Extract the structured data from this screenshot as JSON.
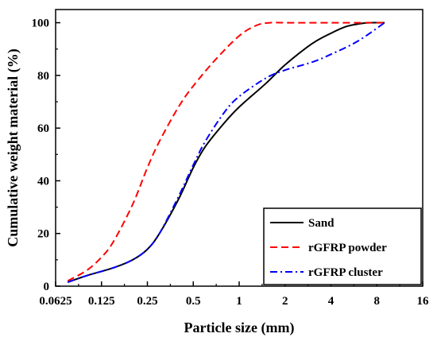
{
  "chart_data": {
    "type": "line",
    "title": "",
    "xlabel": "Particle size (mm)",
    "ylabel": "Cumulative weight material (%)",
    "x_scale": "log2",
    "xlim": [
      0.0625,
      16
    ],
    "ylim": [
      0,
      105
    ],
    "x_ticks": [
      0.0625,
      0.125,
      0.25,
      0.5,
      1,
      2,
      4,
      8,
      16
    ],
    "x_tick_labels": [
      "0.0625",
      "0.125",
      "0.25",
      "0.5",
      "1",
      "2",
      "4",
      "8",
      "16"
    ],
    "y_ticks": [
      0,
      20,
      40,
      60,
      80,
      100
    ],
    "y_tick_labels": [
      "0",
      "20",
      "40",
      "60",
      "80",
      "100"
    ],
    "grid": false,
    "legend_position": "bottom-right",
    "series": [
      {
        "name": "Sand",
        "color": "#000000",
        "dash": "solid",
        "points": [
          [
            0.075,
            1.5
          ],
          [
            0.1,
            4
          ],
          [
            0.15,
            7
          ],
          [
            0.2,
            10
          ],
          [
            0.25,
            14
          ],
          [
            0.3,
            20
          ],
          [
            0.4,
            33
          ],
          [
            0.5,
            45
          ],
          [
            0.6,
            53
          ],
          [
            0.8,
            62
          ],
          [
            1,
            68
          ],
          [
            1.5,
            77
          ],
          [
            2,
            84
          ],
          [
            3,
            92
          ],
          [
            4,
            96
          ],
          [
            5,
            98.5
          ],
          [
            6,
            99.5
          ],
          [
            7,
            100
          ],
          [
            9,
            100
          ]
        ]
      },
      {
        "name": "rGFRP powder",
        "color": "#ff0000",
        "dash": "dashed",
        "points": [
          [
            0.075,
            2
          ],
          [
            0.1,
            6
          ],
          [
            0.125,
            11
          ],
          [
            0.15,
            17
          ],
          [
            0.2,
            31
          ],
          [
            0.25,
            45
          ],
          [
            0.3,
            55
          ],
          [
            0.4,
            68
          ],
          [
            0.5,
            76
          ],
          [
            0.7,
            86
          ],
          [
            1,
            95
          ],
          [
            1.3,
            99
          ],
          [
            1.6,
            100
          ],
          [
            2,
            100
          ],
          [
            4,
            100
          ],
          [
            8,
            100
          ],
          [
            9,
            100
          ]
        ]
      },
      {
        "name": "rGFRP cluster",
        "color": "#0000ff",
        "dash": "dashdot",
        "points": [
          [
            0.075,
            1.5
          ],
          [
            0.1,
            4
          ],
          [
            0.15,
            7
          ],
          [
            0.2,
            10
          ],
          [
            0.25,
            14
          ],
          [
            0.3,
            20
          ],
          [
            0.4,
            34
          ],
          [
            0.5,
            46
          ],
          [
            0.6,
            55
          ],
          [
            0.8,
            66
          ],
          [
            1,
            72
          ],
          [
            1.5,
            79
          ],
          [
            2,
            82
          ],
          [
            3,
            85
          ],
          [
            4,
            88
          ],
          [
            6,
            93
          ],
          [
            9,
            100
          ]
        ]
      }
    ]
  }
}
